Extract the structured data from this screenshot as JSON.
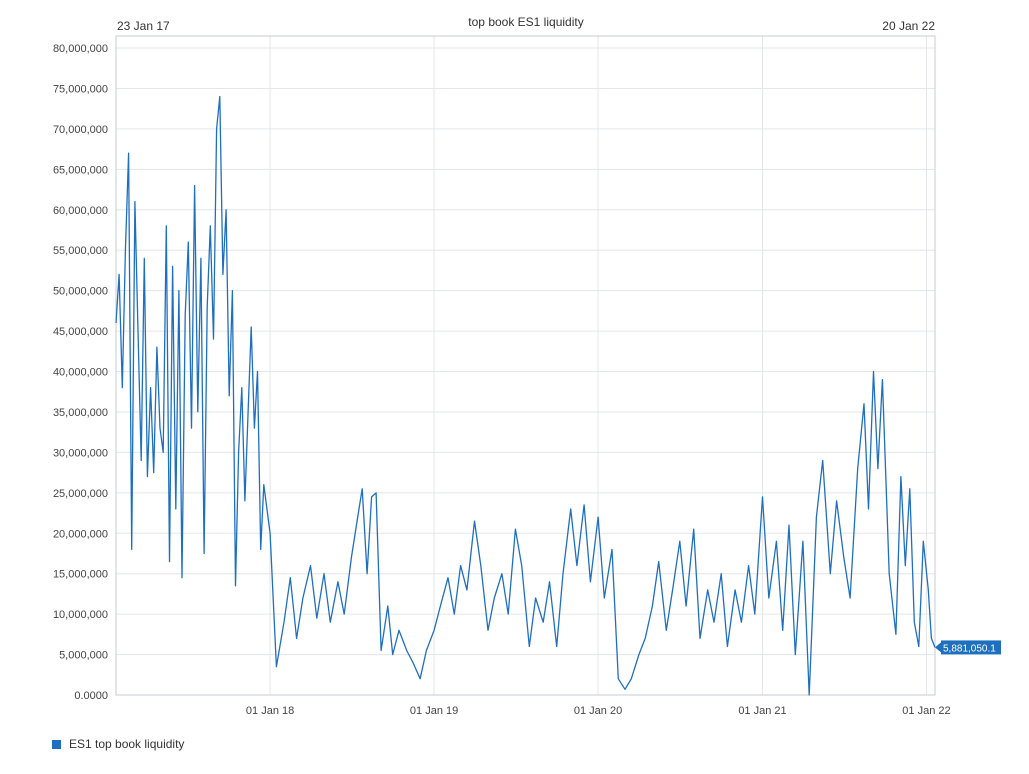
{
  "chart_data": {
    "type": "line",
    "title": "top book ES1 liquidity",
    "range_start_label": "23 Jan 17",
    "range_end_label": "20 Jan 22",
    "xlabel": "",
    "ylabel": "",
    "x_range": [
      "2017-01-23",
      "2022-01-20"
    ],
    "ylim": [
      0,
      80000000
    ],
    "y_ticks": [
      "0.0000",
      "5,000,000",
      "10,000,000",
      "15,000,000",
      "20,000,000",
      "25,000,000",
      "30,000,000",
      "35,000,000",
      "40,000,000",
      "45,000,000",
      "50,000,000",
      "55,000,000",
      "60,000,000",
      "65,000,000",
      "70,000,000",
      "75,000,000",
      "80,000,000"
    ],
    "x_ticks": [
      {
        "date": "2018-01-01",
        "label": "01 Jan 18"
      },
      {
        "date": "2019-01-01",
        "label": "01 Jan 19"
      },
      {
        "date": "2020-01-01",
        "label": "01 Jan 20"
      },
      {
        "date": "2021-01-01",
        "label": "01 Jan 21"
      },
      {
        "date": "2022-01-01",
        "label": "01 Jan 22"
      }
    ],
    "grid": true,
    "legend_position": "bottom-left",
    "last_value_label": "5,881,050.1",
    "series": [
      {
        "name": "ES1 top book liquidity",
        "color": "#1f6fbf",
        "points": [
          [
            "2017-01-23",
            46000000
          ],
          [
            "2017-01-30",
            52000000
          ],
          [
            "2017-02-06",
            38000000
          ],
          [
            "2017-02-13",
            55000000
          ],
          [
            "2017-02-20",
            67000000
          ],
          [
            "2017-02-27",
            18000000
          ],
          [
            "2017-03-06",
            61000000
          ],
          [
            "2017-03-13",
            45000000
          ],
          [
            "2017-03-20",
            29000000
          ],
          [
            "2017-03-27",
            54000000
          ],
          [
            "2017-04-03",
            27000000
          ],
          [
            "2017-04-10",
            38000000
          ],
          [
            "2017-04-17",
            27500000
          ],
          [
            "2017-04-24",
            43000000
          ],
          [
            "2017-05-01",
            33000000
          ],
          [
            "2017-05-08",
            30000000
          ],
          [
            "2017-05-15",
            58000000
          ],
          [
            "2017-05-22",
            16500000
          ],
          [
            "2017-05-29",
            53000000
          ],
          [
            "2017-06-05",
            23000000
          ],
          [
            "2017-06-12",
            50000000
          ],
          [
            "2017-06-19",
            14500000
          ],
          [
            "2017-06-26",
            47000000
          ],
          [
            "2017-07-03",
            56000000
          ],
          [
            "2017-07-10",
            33000000
          ],
          [
            "2017-07-17",
            63000000
          ],
          [
            "2017-07-24",
            35000000
          ],
          [
            "2017-07-31",
            54000000
          ],
          [
            "2017-08-07",
            17500000
          ],
          [
            "2017-08-14",
            48000000
          ],
          [
            "2017-08-21",
            58000000
          ],
          [
            "2017-08-28",
            44000000
          ],
          [
            "2017-09-04",
            70000000
          ],
          [
            "2017-09-11",
            74000000
          ],
          [
            "2017-09-18",
            52000000
          ],
          [
            "2017-09-25",
            60000000
          ],
          [
            "2017-10-02",
            37000000
          ],
          [
            "2017-10-09",
            50000000
          ],
          [
            "2017-10-16",
            13500000
          ],
          [
            "2017-10-23",
            30000000
          ],
          [
            "2017-10-30",
            38000000
          ],
          [
            "2017-11-06",
            24000000
          ],
          [
            "2017-11-13",
            35000000
          ],
          [
            "2017-11-20",
            45500000
          ],
          [
            "2017-11-27",
            33000000
          ],
          [
            "2017-12-04",
            40000000
          ],
          [
            "2017-12-11",
            18000000
          ],
          [
            "2017-12-18",
            26000000
          ],
          [
            "2018-01-01",
            20000000
          ],
          [
            "2018-01-15",
            3500000
          ],
          [
            "2018-02-01",
            9000000
          ],
          [
            "2018-02-15",
            14500000
          ],
          [
            "2018-03-01",
            7000000
          ],
          [
            "2018-03-15",
            12000000
          ],
          [
            "2018-04-01",
            16000000
          ],
          [
            "2018-04-15",
            9500000
          ],
          [
            "2018-05-01",
            15000000
          ],
          [
            "2018-05-15",
            9000000
          ],
          [
            "2018-06-01",
            14000000
          ],
          [
            "2018-06-15",
            10000000
          ],
          [
            "2018-07-01",
            17000000
          ],
          [
            "2018-07-15",
            22000000
          ],
          [
            "2018-07-25",
            25500000
          ],
          [
            "2018-08-05",
            15000000
          ],
          [
            "2018-08-15",
            24500000
          ],
          [
            "2018-08-25",
            25000000
          ],
          [
            "2018-09-05",
            5500000
          ],
          [
            "2018-09-20",
            11000000
          ],
          [
            "2018-10-01",
            5000000
          ],
          [
            "2018-10-15",
            8000000
          ],
          [
            "2018-11-01",
            5500000
          ],
          [
            "2018-11-15",
            4000000
          ],
          [
            "2018-12-01",
            2000000
          ],
          [
            "2018-12-15",
            5500000
          ],
          [
            "2019-01-01",
            8000000
          ],
          [
            "2019-01-15",
            11000000
          ],
          [
            "2019-02-01",
            14500000
          ],
          [
            "2019-02-15",
            10000000
          ],
          [
            "2019-03-01",
            16000000
          ],
          [
            "2019-03-15",
            13000000
          ],
          [
            "2019-04-01",
            21500000
          ],
          [
            "2019-04-15",
            16000000
          ],
          [
            "2019-05-01",
            8000000
          ],
          [
            "2019-05-15",
            12000000
          ],
          [
            "2019-06-01",
            15000000
          ],
          [
            "2019-06-15",
            10000000
          ],
          [
            "2019-07-01",
            20500000
          ],
          [
            "2019-07-15",
            16000000
          ],
          [
            "2019-08-01",
            6000000
          ],
          [
            "2019-08-15",
            12000000
          ],
          [
            "2019-09-01",
            9000000
          ],
          [
            "2019-09-15",
            14000000
          ],
          [
            "2019-10-01",
            6000000
          ],
          [
            "2019-10-15",
            15000000
          ],
          [
            "2019-11-01",
            23000000
          ],
          [
            "2019-11-15",
            16000000
          ],
          [
            "2019-12-01",
            23500000
          ],
          [
            "2019-12-15",
            14000000
          ],
          [
            "2020-01-01",
            22000000
          ],
          [
            "2020-01-15",
            12000000
          ],
          [
            "2020-02-01",
            18000000
          ],
          [
            "2020-02-15",
            2000000
          ],
          [
            "2020-03-01",
            700000
          ],
          [
            "2020-03-15",
            2000000
          ],
          [
            "2020-04-01",
            5000000
          ],
          [
            "2020-04-15",
            7000000
          ],
          [
            "2020-05-01",
            11000000
          ],
          [
            "2020-05-15",
            16500000
          ],
          [
            "2020-06-01",
            8000000
          ],
          [
            "2020-06-15",
            13000000
          ],
          [
            "2020-07-01",
            19000000
          ],
          [
            "2020-07-15",
            11000000
          ],
          [
            "2020-08-01",
            20500000
          ],
          [
            "2020-08-15",
            7000000
          ],
          [
            "2020-09-01",
            13000000
          ],
          [
            "2020-09-15",
            9000000
          ],
          [
            "2020-10-01",
            15000000
          ],
          [
            "2020-10-15",
            6000000
          ],
          [
            "2020-11-01",
            13000000
          ],
          [
            "2020-11-15",
            9000000
          ],
          [
            "2020-12-01",
            16000000
          ],
          [
            "2020-12-15",
            10000000
          ],
          [
            "2021-01-01",
            24500000
          ],
          [
            "2021-01-15",
            12000000
          ],
          [
            "2021-02-01",
            19000000
          ],
          [
            "2021-02-15",
            8000000
          ],
          [
            "2021-03-01",
            21000000
          ],
          [
            "2021-03-15",
            5000000
          ],
          [
            "2021-04-01",
            19000000
          ],
          [
            "2021-04-15",
            0
          ],
          [
            "2021-05-01",
            22000000
          ],
          [
            "2021-05-15",
            29000000
          ],
          [
            "2021-06-01",
            15000000
          ],
          [
            "2021-06-15",
            24000000
          ],
          [
            "2021-07-01",
            17000000
          ],
          [
            "2021-07-15",
            12000000
          ],
          [
            "2021-08-01",
            28000000
          ],
          [
            "2021-08-15",
            36000000
          ],
          [
            "2021-08-25",
            23000000
          ],
          [
            "2021-09-05",
            40000000
          ],
          [
            "2021-09-15",
            28000000
          ],
          [
            "2021-09-25",
            39000000
          ],
          [
            "2021-10-10",
            15000000
          ],
          [
            "2021-10-25",
            7500000
          ],
          [
            "2021-11-05",
            27000000
          ],
          [
            "2021-11-15",
            16000000
          ],
          [
            "2021-11-25",
            25500000
          ],
          [
            "2021-12-05",
            9000000
          ],
          [
            "2021-12-15",
            6000000
          ],
          [
            "2021-12-25",
            19000000
          ],
          [
            "2022-01-05",
            13000000
          ],
          [
            "2022-01-12",
            7000000
          ],
          [
            "2022-01-20",
            5881050.1
          ]
        ]
      }
    ]
  }
}
